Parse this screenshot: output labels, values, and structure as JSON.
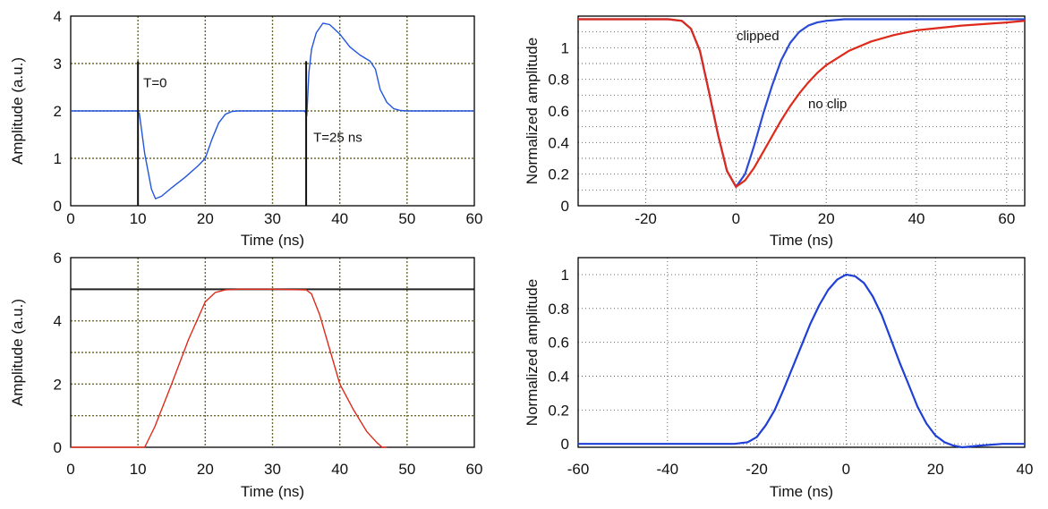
{
  "chart_data": [
    {
      "type": "line",
      "xlabel": "Time (ns)",
      "ylabel": "Amplitude (a.u.)",
      "xlim": [
        0,
        60
      ],
      "ylim": [
        0,
        4
      ],
      "xticks": [
        "0",
        "10",
        "20",
        "30",
        "40",
        "50",
        "60"
      ],
      "yticks": [
        "0",
        "1",
        "2",
        "3",
        "4"
      ],
      "grid": true,
      "grid_color": "#6b6b2e",
      "series": [
        {
          "color": "#2255dd",
          "x": [
            0,
            9.8,
            10.2,
            11,
            12,
            12.6,
            13.5,
            15,
            17,
            19,
            20,
            21,
            22,
            23,
            24,
            25,
            30,
            34.8,
            35.1,
            35.4,
            35.8,
            36.5,
            37.5,
            38.5,
            40,
            41.5,
            43,
            44.5,
            45.3,
            46,
            47,
            48,
            49,
            50,
            55,
            60
          ],
          "y": [
            2,
            2,
            1.95,
            1.1,
            0.35,
            0.15,
            0.2,
            0.38,
            0.6,
            0.85,
            1.0,
            1.4,
            1.75,
            1.93,
            1.99,
            2.0,
            2.0,
            2.0,
            1.9,
            2.8,
            3.3,
            3.65,
            3.85,
            3.82,
            3.62,
            3.35,
            3.18,
            3.05,
            2.88,
            2.45,
            2.18,
            2.05,
            2.01,
            2.0,
            2.0,
            2.0
          ]
        }
      ],
      "markers": [
        {
          "x": 10,
          "y_from": 0,
          "y_to": 3.05,
          "label": "T=0"
        },
        {
          "x": 35,
          "y_from": 0,
          "y_to": 3.05,
          "label": "T=25 ns"
        }
      ]
    },
    {
      "type": "line",
      "xlabel": "Time (ns)",
      "ylabel": "Normalized amplitude",
      "xlim": [
        -35,
        64
      ],
      "ylim": [
        0,
        1.2
      ],
      "xticks": [
        "-20",
        "0",
        "20",
        "40",
        "60"
      ],
      "yticks": [
        "0",
        "0.2",
        "0.4",
        "0.6",
        "0.8",
        "1"
      ],
      "grid": true,
      "series": [
        {
          "name": "clipped",
          "color": "#2b4bd4",
          "x": [
            -35,
            -15,
            -12,
            -10,
            -8,
            -6,
            -4,
            -2,
            0,
            2,
            4,
            6,
            8,
            10,
            12,
            14,
            16,
            18,
            20,
            24,
            30,
            40,
            64
          ],
          "y": [
            1.18,
            1.18,
            1.17,
            1.12,
            0.98,
            0.72,
            0.45,
            0.22,
            0.12,
            0.2,
            0.38,
            0.58,
            0.76,
            0.92,
            1.03,
            1.1,
            1.14,
            1.16,
            1.17,
            1.18,
            1.18,
            1.18,
            1.18
          ]
        },
        {
          "name": "no clip",
          "color": "#dd2a1a",
          "x": [
            -35,
            -15,
            -12,
            -10,
            -8,
            -6,
            -4,
            -2,
            0,
            2,
            4,
            6,
            8,
            10,
            12,
            14,
            16,
            18,
            20,
            25,
            30,
            35,
            40,
            50,
            60,
            64
          ],
          "y": [
            1.18,
            1.18,
            1.17,
            1.12,
            0.98,
            0.72,
            0.45,
            0.22,
            0.12,
            0.16,
            0.24,
            0.34,
            0.44,
            0.54,
            0.63,
            0.71,
            0.78,
            0.84,
            0.89,
            0.98,
            1.04,
            1.08,
            1.11,
            1.14,
            1.16,
            1.17
          ]
        }
      ],
      "annotations": [
        "clipped",
        "no clip"
      ]
    },
    {
      "type": "line",
      "xlabel": "Time (ns)",
      "ylabel": "Amplitude (a.u.)",
      "xlim": [
        0,
        60
      ],
      "ylim": [
        0,
        6
      ],
      "xticks": [
        "0",
        "10",
        "20",
        "30",
        "40",
        "50",
        "60"
      ],
      "yticks": [
        "0",
        "2",
        "4",
        "6"
      ],
      "grid": true,
      "grid_color": "#6b6b2e",
      "hlines": [
        5
      ],
      "series": [
        {
          "color": "#dd2a1a",
          "x": [
            0,
            10.5,
            11,
            12.5,
            15,
            17.5,
            20,
            21.5,
            23,
            25,
            30,
            35,
            35.8,
            37,
            38.5,
            40,
            42,
            44,
            45.5,
            46.3,
            47
          ],
          "y": [
            0,
            0,
            0,
            0.65,
            2.0,
            3.4,
            4.6,
            4.9,
            4.98,
            5.0,
            5.0,
            4.98,
            4.85,
            4.2,
            3.1,
            2.0,
            1.2,
            0.5,
            0.15,
            0.0,
            0.0
          ]
        }
      ]
    },
    {
      "type": "line",
      "xlabel": "Time (ns)",
      "ylabel": "Normalized amplitude",
      "xlim": [
        -60,
        40
      ],
      "ylim": [
        -0.02,
        1.1
      ],
      "xticks": [
        "-60",
        "-40",
        "-20",
        "0",
        "20",
        "40"
      ],
      "yticks": [
        "0",
        "0.2",
        "0.4",
        "0.6",
        "0.8",
        "1"
      ],
      "grid": true,
      "series": [
        {
          "color": "#1f3fd6",
          "x": [
            -60,
            -40,
            -25,
            -22,
            -20,
            -18,
            -16,
            -14,
            -12,
            -10,
            -8,
            -6,
            -4,
            -2,
            0,
            2,
            4,
            6,
            8,
            10,
            12,
            14,
            16,
            18,
            20,
            22,
            24,
            26,
            30,
            35,
            40
          ],
          "y": [
            0,
            0,
            0,
            0.01,
            0.04,
            0.11,
            0.2,
            0.32,
            0.45,
            0.58,
            0.71,
            0.82,
            0.91,
            0.97,
            1.0,
            0.99,
            0.95,
            0.87,
            0.76,
            0.62,
            0.48,
            0.35,
            0.22,
            0.12,
            0.05,
            0.01,
            -0.01,
            -0.02,
            -0.01,
            0,
            0
          ]
        }
      ]
    }
  ]
}
